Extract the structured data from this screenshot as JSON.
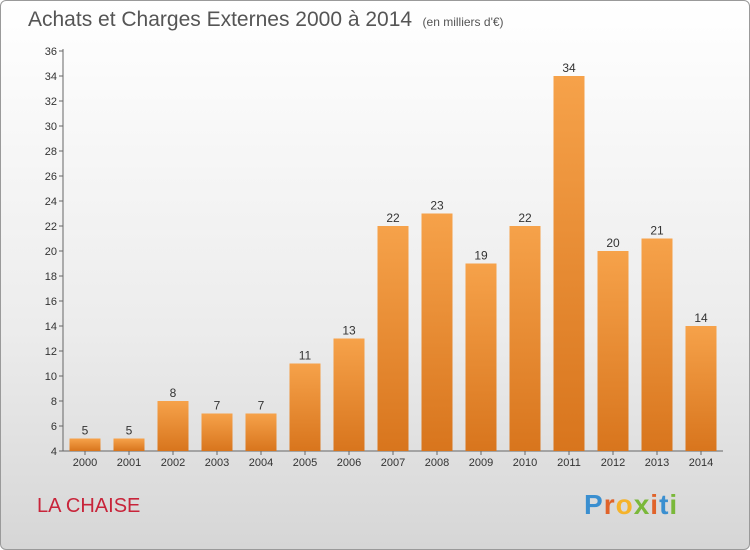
{
  "title": "Achats et Charges Externes 2000 à 2014",
  "unit": "(en milliers d'€)",
  "city": "LA CHAISE",
  "logo": "Proxiti",
  "colors": {
    "bar_light": "#f6a24a",
    "bar_dark": "#d8751d",
    "city": "#c8243a",
    "logo_letters": [
      "#3a8fd0",
      "#e0632a",
      "#f5b32b",
      "#7ab83a",
      "#e0632a",
      "#3a8fd0",
      "#7ab83a"
    ]
  },
  "chart_data": {
    "type": "bar",
    "categories": [
      "2000",
      "2001",
      "2002",
      "2003",
      "2004",
      "2005",
      "2006",
      "2007",
      "2008",
      "2009",
      "2010",
      "2011",
      "2012",
      "2013",
      "2014"
    ],
    "values": [
      5,
      5,
      8,
      7,
      7,
      11,
      13,
      22,
      23,
      19,
      22,
      34,
      20,
      21,
      14
    ],
    "ylim": [
      4,
      36
    ],
    "yticks": [
      4,
      6,
      8,
      10,
      12,
      14,
      16,
      18,
      20,
      22,
      24,
      26,
      28,
      30,
      32,
      34,
      36
    ],
    "grid": false,
    "data_labels": true
  }
}
